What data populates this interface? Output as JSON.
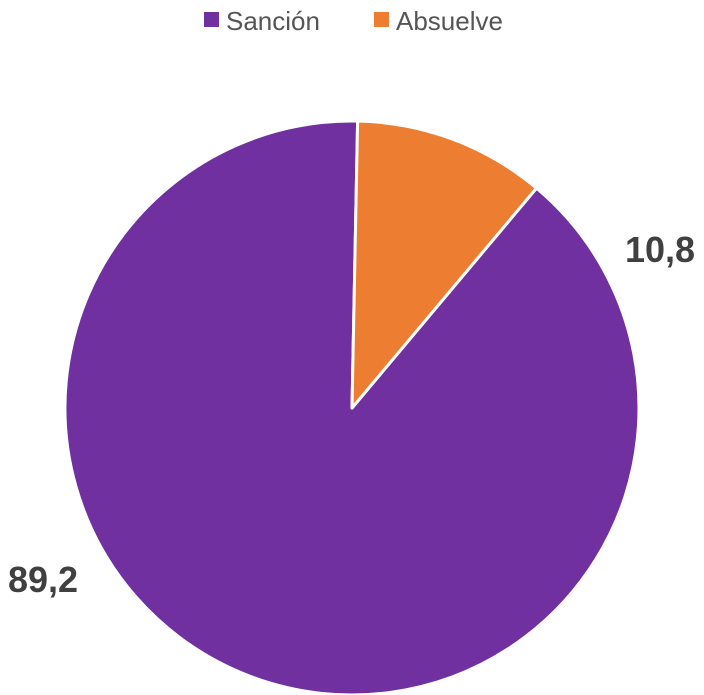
{
  "chart_data": {
    "type": "pie",
    "title": "",
    "slices": [
      {
        "name": "Sanción",
        "value": 89.2,
        "label": "89,2",
        "color": "#7030a0"
      },
      {
        "name": "Absuelve",
        "value": 10.8,
        "label": "10,8",
        "color": "#ed7d31"
      }
    ],
    "legend": {
      "placement": "top",
      "items": [
        "Sanción",
        "Absuelve"
      ]
    },
    "start_angle_deg": 40,
    "direction": "clockwise"
  }
}
